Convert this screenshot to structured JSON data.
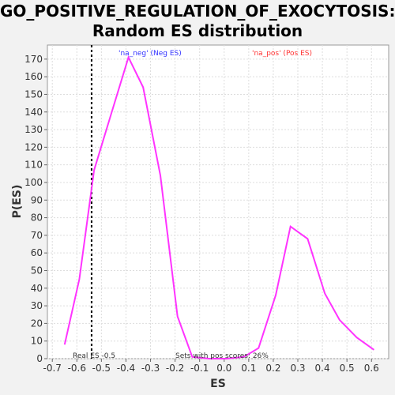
{
  "title_line1": "GO_POSITIVE_REGULATION_OF_EXOCYTOSIS:",
  "title_line2": "Random ES distribution",
  "colors": {
    "series": "#ff33ff",
    "neg_label": "#3333ff",
    "pos_label": "#ff3333",
    "plot_bg": "#ffffff",
    "grid": "#dddddd",
    "real_es_line": "#000000"
  },
  "chart_data": {
    "type": "line",
    "title": "GO_POSITIVE_REGULATION_OF_EXOCYTOSIS: Random ES distribution",
    "xlabel": "ES",
    "ylabel": "P(ES)",
    "xlim": [
      -0.72,
      0.67
    ],
    "ylim": [
      0,
      178
    ],
    "xticks": [
      -0.7,
      -0.6,
      -0.5,
      -0.4,
      -0.3,
      -0.2,
      -0.1,
      0.0,
      0.1,
      0.2,
      0.3,
      0.4,
      0.5,
      0.6
    ],
    "xtick_labels": [
      "-0.7",
      "-0.6",
      "-0.5",
      "-0.4",
      "-0.3",
      "-0.2",
      "-0.1",
      "0.0",
      "0.1",
      "0.2",
      "0.3",
      "0.4",
      "0.5",
      "0.6"
    ],
    "yticks": [
      0,
      10,
      20,
      30,
      40,
      50,
      60,
      70,
      80,
      90,
      100,
      110,
      120,
      130,
      140,
      150,
      160,
      170
    ],
    "grid": true,
    "series": [
      {
        "x": [
          -0.65,
          -0.59,
          -0.53,
          -0.46,
          -0.39,
          -0.33,
          -0.26,
          -0.19,
          -0.13,
          -0.06,
          0.01,
          0.08,
          0.14,
          0.21,
          0.27,
          0.34,
          0.41,
          0.47,
          0.54,
          0.61
        ],
        "y": [
          8,
          45,
          107,
          139,
          171,
          154,
          104,
          24,
          1,
          0,
          0,
          1,
          6,
          36,
          75,
          68,
          37,
          22,
          12,
          5
        ]
      }
    ],
    "real_es": -0.54,
    "annotations": {
      "neg_label": "'na_neg' (Neg ES)",
      "pos_label": "'na_pos' (Pos ES)",
      "real_es_label": "Real ES -0.5",
      "pos_scores_label": "Sets with pos scores: 26%"
    }
  }
}
